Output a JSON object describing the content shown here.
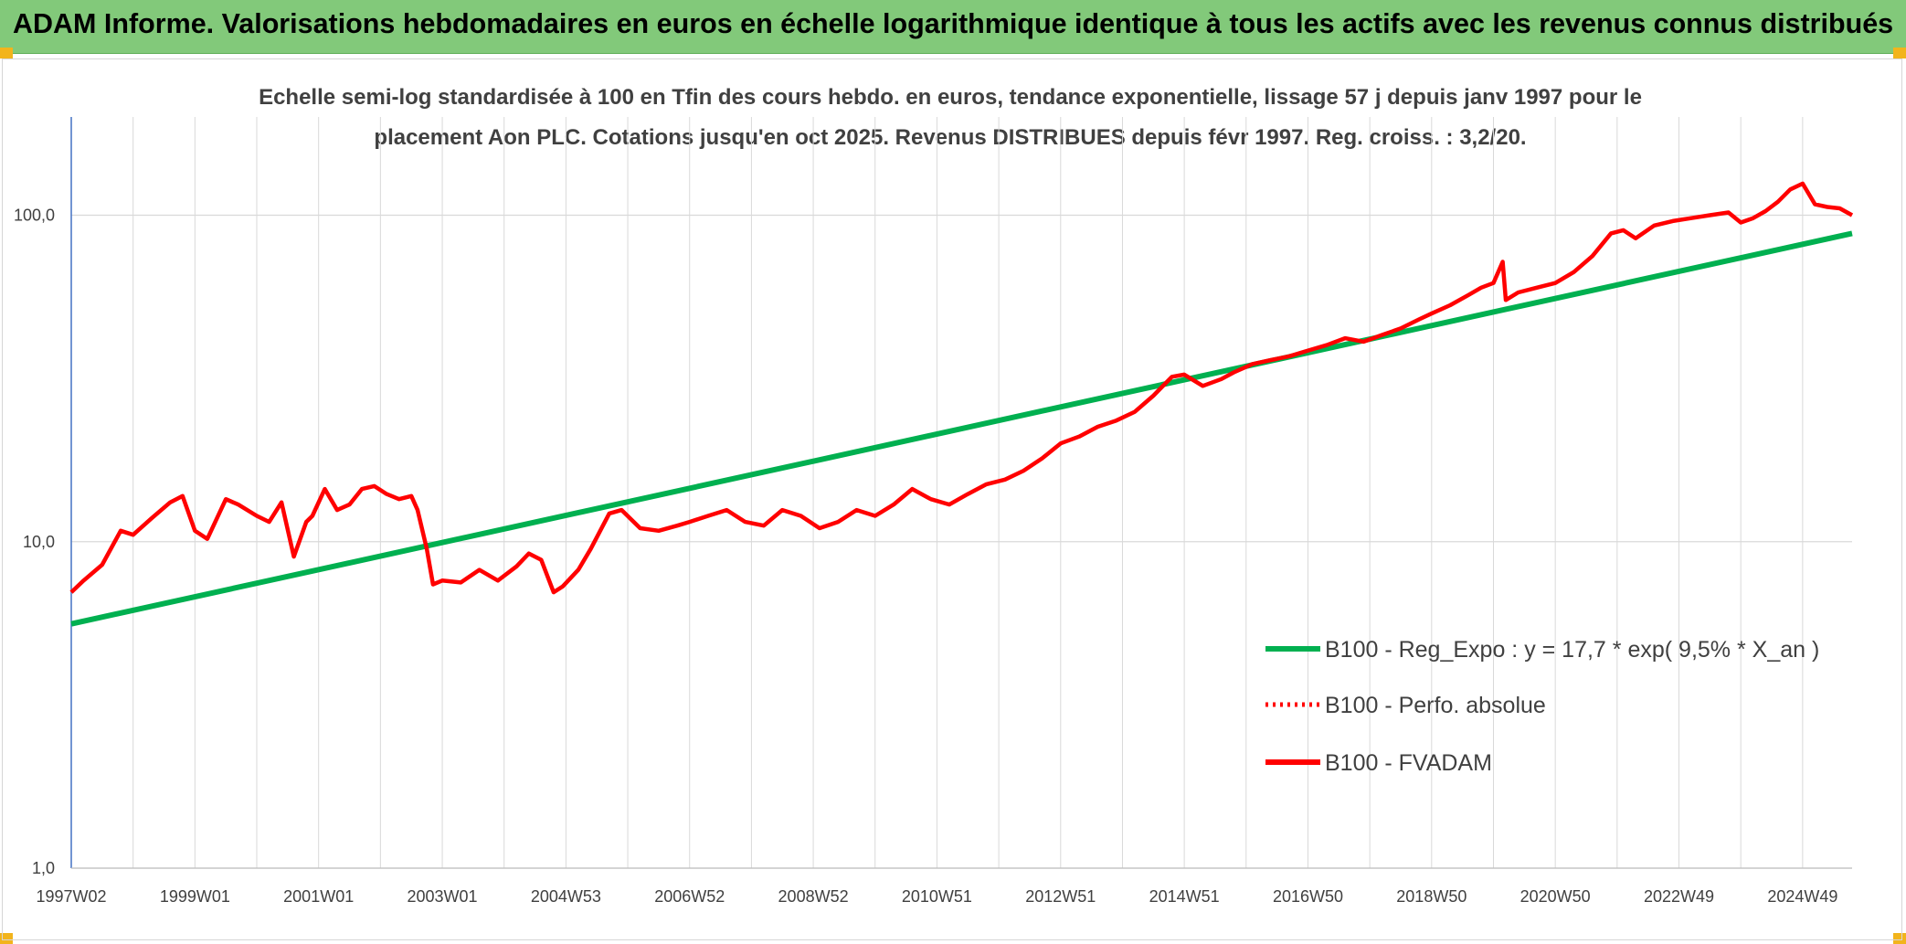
{
  "header": {
    "title": "ADAM Informe. Valorisations hebdomadaires en euros en échelle logarithmique identique à tous les actifs avec les revenus connus distribués"
  },
  "colors": {
    "header_bg": "#82c97a",
    "trend": "#00b050",
    "fvadam": "#ff0000",
    "perf": "#ff0000",
    "grid": "#d9d9d9",
    "axis": "#4472c4"
  },
  "chart_data": {
    "type": "line",
    "subtitle_lines": [
      "Echelle semi-log standardisée à 100 en Tfin des cours hebdo. en euros, tendance exponentielle, lissage 57 j depuis janv 1997 pour le",
      "placement Aon PLC. Cotations jusqu'en oct 2025. Revenus DISTRIBUES depuis févr 1997. Reg. croiss. : 3,2/20."
    ],
    "y_scale": "log",
    "ylim": [
      1,
      200
    ],
    "yticks": [
      1,
      10,
      100
    ],
    "ytick_labels": [
      "1,0",
      "10,0",
      "100,0"
    ],
    "xlim": [
      1997.0,
      2025.8
    ],
    "x_ticks": [
      {
        "x": 1997.0,
        "label": "1997W02"
      },
      {
        "x": 1999.0,
        "label": "1999W01"
      },
      {
        "x": 2001.0,
        "label": "2001W01"
      },
      {
        "x": 2003.0,
        "label": "2003W01"
      },
      {
        "x": 2005.0,
        "label": "2004W53"
      },
      {
        "x": 2007.0,
        "label": "2006W52"
      },
      {
        "x": 2009.0,
        "label": "2008W52"
      },
      {
        "x": 2011.0,
        "label": "2010W51"
      },
      {
        "x": 2013.0,
        "label": "2012W51"
      },
      {
        "x": 2015.0,
        "label": "2014W51"
      },
      {
        "x": 2017.0,
        "label": "2016W50"
      },
      {
        "x": 2019.0,
        "label": "2018W50"
      },
      {
        "x": 2021.0,
        "label": "2020W50"
      },
      {
        "x": 2023.0,
        "label": "2022W49"
      },
      {
        "x": 2025.0,
        "label": "2024W49"
      }
    ],
    "grid": "vertical and horizontal",
    "legend_position": "bottom-right",
    "series": [
      {
        "name": "B100 - Reg_Expo : y = 17,7 * exp( 9,5% *  X_an )",
        "style": "solid",
        "color": "#00b050",
        "x": [
          1997.0,
          2025.8
        ],
        "y": [
          5.6,
          88.0
        ]
      },
      {
        "name": "B100 - Perfo. absolue",
        "style": "dotted",
        "color": "#ff0000",
        "x": [],
        "y": []
      },
      {
        "name": "B100 - FVADAM",
        "style": "solid",
        "color": "#ff0000",
        "x": [
          1997.0,
          1997.2,
          1997.5,
          1997.8,
          1998.0,
          1998.3,
          1998.6,
          1998.8,
          1999.0,
          1999.2,
          1999.5,
          1999.7,
          2000.0,
          2000.2,
          2000.4,
          2000.6,
          2000.8,
          2000.9,
          2001.1,
          2001.3,
          2001.5,
          2001.7,
          2001.9,
          2002.1,
          2002.3,
          2002.5,
          2002.6,
          2002.75,
          2002.85,
          2003.0,
          2003.3,
          2003.6,
          2003.9,
          2004.2,
          2004.4,
          2004.6,
          2004.8,
          2004.95,
          2005.2,
          2005.4,
          2005.7,
          2005.9,
          2006.2,
          2006.5,
          2006.8,
          2007.0,
          2007.3,
          2007.6,
          2007.9,
          2008.2,
          2008.5,
          2008.8,
          2009.1,
          2009.4,
          2009.7,
          2010.0,
          2010.3,
          2010.6,
          2010.9,
          2011.2,
          2011.5,
          2011.8,
          2012.1,
          2012.4,
          2012.7,
          2013.0,
          2013.3,
          2013.6,
          2013.9,
          2014.2,
          2014.5,
          2014.8,
          2015.0,
          2015.3,
          2015.6,
          2015.8,
          2016.1,
          2016.4,
          2016.7,
          2017.0,
          2017.3,
          2017.6,
          2017.9,
          2018.2,
          2018.5,
          2018.8,
          2019.0,
          2019.3,
          2019.6,
          2019.8,
          2020.0,
          2020.15,
          2020.2,
          2020.4,
          2020.7,
          2021.0,
          2021.3,
          2021.6,
          2021.9,
          2022.1,
          2022.3,
          2022.6,
          2022.9,
          2023.2,
          2023.5,
          2023.8,
          2024.0,
          2024.2,
          2024.4,
          2024.6,
          2024.8,
          2025.0,
          2025.2,
          2025.4,
          2025.6,
          2025.8
        ],
        "y": [
          7.0,
          7.6,
          8.5,
          10.8,
          10.5,
          11.8,
          13.2,
          13.8,
          10.8,
          10.2,
          13.5,
          13.0,
          12.0,
          11.5,
          13.2,
          9.0,
          11.5,
          12.0,
          14.5,
          12.5,
          13.0,
          14.5,
          14.8,
          14.0,
          13.5,
          13.8,
          12.5,
          9.5,
          7.4,
          7.6,
          7.5,
          8.2,
          7.6,
          8.4,
          9.2,
          8.8,
          7.0,
          7.3,
          8.2,
          9.5,
          12.2,
          12.5,
          11.0,
          10.8,
          11.2,
          11.5,
          12.0,
          12.5,
          11.5,
          11.2,
          12.5,
          12.0,
          11.0,
          11.5,
          12.5,
          12.0,
          13.0,
          14.5,
          13.5,
          13.0,
          14.0,
          15.0,
          15.5,
          16.5,
          18.0,
          20.0,
          21.0,
          22.5,
          23.5,
          25.0,
          28.0,
          32.0,
          32.5,
          30.0,
          31.5,
          33.0,
          35.0,
          36.0,
          37.0,
          38.5,
          40.0,
          42.0,
          41.0,
          43.0,
          45.0,
          48.0,
          50.0,
          53.0,
          57.0,
          60.0,
          62.0,
          72.0,
          55.0,
          58.0,
          60.0,
          62.0,
          67.0,
          75.0,
          88.0,
          90.0,
          85.0,
          93.0,
          96.0,
          98.0,
          100.0,
          102.0,
          95.0,
          98.0,
          103.0,
          110.0,
          120.0,
          125.0,
          108.0,
          106.0,
          105.0,
          100.0
        ]
      }
    ]
  }
}
